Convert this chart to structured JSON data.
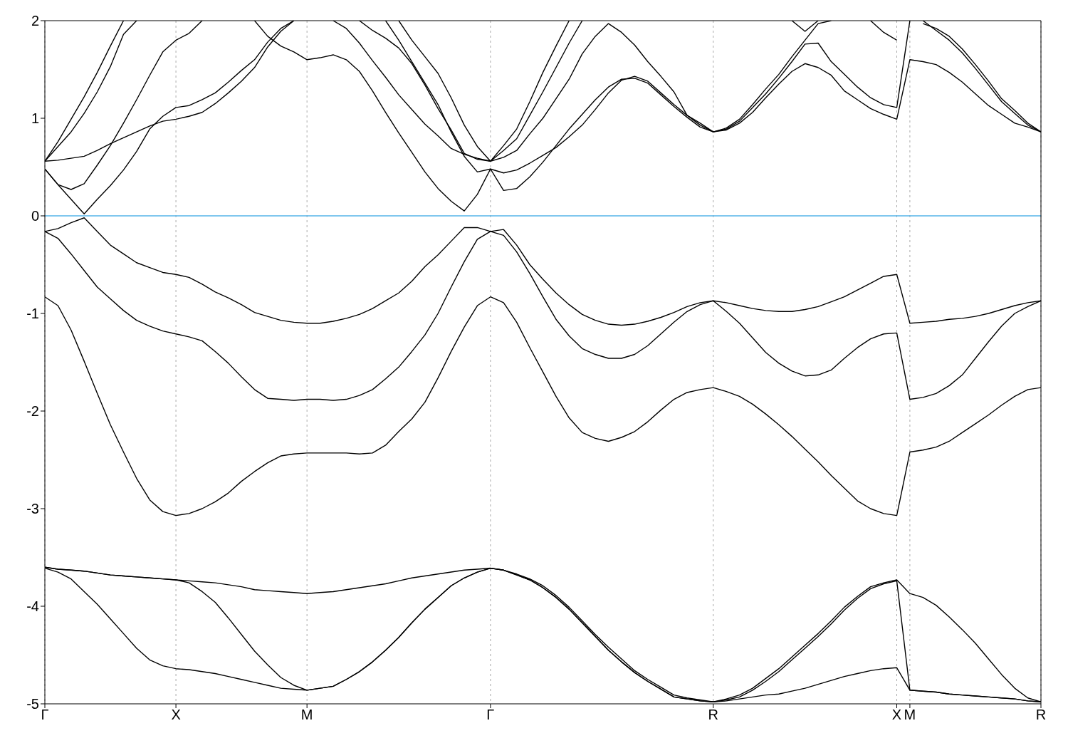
{
  "chart_data": {
    "type": "line",
    "ylim": [
      -5,
      2
    ],
    "yticks": [
      -5,
      -4,
      -3,
      -2,
      -1,
      0,
      1,
      2
    ],
    "categories": [
      "Γ",
      null,
      null,
      null,
      null,
      null,
      null,
      null,
      null,
      null,
      "X",
      null,
      null,
      null,
      null,
      null,
      null,
      null,
      null,
      null,
      "M",
      null,
      null,
      null,
      null,
      null,
      null,
      null,
      null,
      null,
      null,
      null,
      null,
      null,
      "Γ",
      null,
      null,
      null,
      null,
      null,
      null,
      null,
      null,
      null,
      null,
      null,
      null,
      null,
      null,
      null,
      null,
      "R",
      null,
      null,
      null,
      null,
      null,
      null,
      null,
      null,
      null,
      null,
      null,
      null,
      null,
      "X",
      "M",
      null,
      null,
      null,
      null,
      null,
      null,
      null,
      null,
      null,
      "R"
    ],
    "grid": "x",
    "ref_lines": [
      {
        "axis": "y",
        "value": 0,
        "color": "#56b4e9"
      }
    ],
    "series": [
      {
        "color": "#000000",
        "values": [
          -3.6,
          -3.62,
          -3.63,
          -3.64,
          -3.66,
          -3.68,
          -3.69,
          -3.7,
          -3.71,
          -3.72,
          -3.73,
          -3.74,
          -3.75,
          -3.76,
          -3.78,
          -3.8,
          -3.83,
          -3.84,
          -3.85,
          -3.86,
          -3.87,
          -3.86,
          -3.85,
          -3.83,
          -3.81,
          -3.79,
          -3.77,
          -3.74,
          -3.71,
          -3.69,
          -3.67,
          -3.65,
          -3.63,
          -3.62,
          -3.61,
          -3.63,
          -3.67,
          -3.72,
          -3.79,
          -3.89,
          -4.01,
          -4.15,
          -4.29,
          -4.42,
          -4.54,
          -4.66,
          -4.75,
          -4.83,
          -4.91,
          -4.94,
          -4.96,
          -4.98,
          -4.95,
          -4.91,
          -4.84,
          -4.74,
          -4.64,
          -4.52,
          -4.4,
          -4.28,
          -4.15,
          -4.01,
          -3.9,
          -3.8,
          -3.76,
          -3.73,
          -3.87,
          -3.91,
          -3.99,
          -4.11,
          -4.24,
          -4.38,
          -4.54,
          -4.7,
          -4.84,
          -4.94,
          -4.98
        ]
      },
      {
        "color": "#000000",
        "values": [
          -3.6,
          -3.62,
          -3.63,
          -3.64,
          -3.66,
          -3.68,
          -3.69,
          -3.7,
          -3.71,
          -3.72,
          -3.73,
          -3.76,
          -3.85,
          -3.96,
          -4.12,
          -4.29,
          -4.46,
          -4.6,
          -4.73,
          -4.81,
          -4.86,
          -4.84,
          -4.82,
          -4.75,
          -4.67,
          -4.57,
          -4.45,
          -4.32,
          -4.17,
          -4.03,
          -3.91,
          -3.79,
          -3.71,
          -3.65,
          -3.61,
          -3.63,
          -3.68,
          -3.73,
          -3.81,
          -3.91,
          -4.03,
          -4.17,
          -4.31,
          -4.45,
          -4.57,
          -4.68,
          -4.77,
          -4.85,
          -4.93,
          -4.95,
          -4.97,
          -4.98,
          -4.96,
          -4.93,
          -4.86,
          -4.77,
          -4.67,
          -4.55,
          -4.43,
          -4.31,
          -4.18,
          -4.04,
          -3.92,
          -3.82,
          -3.77,
          -3.74,
          -4.86,
          -4.87,
          -4.88,
          -4.9,
          -4.91,
          -4.92,
          -4.93,
          -4.94,
          -4.95,
          -4.97,
          -4.98
        ]
      },
      {
        "color": "#000000",
        "values": [
          -3.61,
          -3.65,
          -3.72,
          -3.85,
          -3.98,
          -4.13,
          -4.28,
          -4.43,
          -4.55,
          -4.61,
          -4.64,
          -4.65,
          -4.67,
          -4.69,
          -4.72,
          -4.75,
          -4.78,
          -4.81,
          -4.84,
          -4.85,
          -4.86,
          -4.84,
          -4.82,
          -4.75,
          -4.67,
          -4.57,
          -4.45,
          -4.32,
          -4.17,
          -4.03,
          -3.91,
          -3.79,
          -3.71,
          -3.65,
          -3.61,
          -3.63,
          -3.68,
          -3.73,
          -3.81,
          -3.91,
          -4.03,
          -4.17,
          -4.31,
          -4.45,
          -4.57,
          -4.68,
          -4.77,
          -4.85,
          -4.93,
          -4.95,
          -4.97,
          -4.98,
          -4.97,
          -4.95,
          -4.93,
          -4.91,
          -4.9,
          -4.87,
          -4.84,
          -4.8,
          -4.76,
          -4.72,
          -4.69,
          -4.66,
          -4.64,
          -4.63,
          -4.86,
          -4.87,
          -4.88,
          -4.9,
          -4.91,
          -4.92,
          -4.93,
          -4.94,
          -4.95,
          -4.97,
          -4.98
        ]
      },
      {
        "color": "#000000",
        "values": [
          -0.83,
          -0.92,
          -1.17,
          -1.49,
          -1.82,
          -2.14,
          -2.42,
          -2.69,
          -2.91,
          -3.03,
          -3.07,
          -3.05,
          -3,
          -2.93,
          -2.84,
          -2.72,
          -2.62,
          -2.53,
          -2.46,
          -2.44,
          -2.43,
          -2.43,
          -2.43,
          -2.43,
          -2.44,
          -2.43,
          -2.35,
          -2.21,
          -2.08,
          -1.91,
          -1.66,
          -1.39,
          -1.14,
          -0.92,
          -0.83,
          -0.89,
          -1.09,
          -1.35,
          -1.6,
          -1.85,
          -2.07,
          -2.22,
          -2.28,
          -2.31,
          -2.27,
          -2.21,
          -2.11,
          -1.99,
          -1.88,
          -1.81,
          -1.78,
          -1.76,
          -1.8,
          -1.85,
          -1.93,
          -2.03,
          -2.14,
          -2.26,
          -2.39,
          -2.52,
          -2.66,
          -2.79,
          -2.92,
          -3,
          -3.05,
          -3.07,
          -2.42,
          -2.4,
          -2.37,
          -2.31,
          -2.22,
          -2.13,
          -2.04,
          -1.94,
          -1.85,
          -1.78,
          -1.76
        ]
      },
      {
        "color": "#000000",
        "values": [
          -0.16,
          -0.23,
          -0.39,
          -0.56,
          -0.73,
          -0.85,
          -0.97,
          -1.07,
          -1.13,
          -1.18,
          -1.21,
          -1.24,
          -1.28,
          -1.39,
          -1.51,
          -1.65,
          -1.78,
          -1.87,
          -1.88,
          -1.89,
          -1.88,
          -1.88,
          -1.89,
          -1.88,
          -1.84,
          -1.78,
          -1.67,
          -1.55,
          -1.39,
          -1.22,
          -1,
          -0.73,
          -0.47,
          -0.24,
          -0.16,
          -0.2,
          -0.37,
          -0.59,
          -0.83,
          -1.06,
          -1.23,
          -1.36,
          -1.42,
          -1.46,
          -1.46,
          -1.42,
          -1.33,
          -1.21,
          -1.09,
          -0.98,
          -0.91,
          -0.87,
          -0.98,
          -1.1,
          -1.25,
          -1.4,
          -1.51,
          -1.59,
          -1.64,
          -1.63,
          -1.58,
          -1.46,
          -1.35,
          -1.26,
          -1.21,
          -1.2,
          -1.88,
          -1.86,
          -1.82,
          -1.74,
          -1.63,
          -1.46,
          -1.29,
          -1.13,
          -1,
          -0.93,
          -0.87
        ]
      },
      {
        "color": "#000000",
        "values": [
          -0.16,
          -0.13,
          -0.07,
          -0.02,
          -0.16,
          -0.3,
          -0.39,
          -0.48,
          -0.53,
          -0.58,
          -0.6,
          -0.63,
          -0.7,
          -0.78,
          -0.84,
          -0.91,
          -0.99,
          -1.03,
          -1.07,
          -1.09,
          -1.1,
          -1.1,
          -1.08,
          -1.05,
          -1.01,
          -0.95,
          -0.87,
          -0.79,
          -0.67,
          -0.52,
          -0.4,
          -0.26,
          -0.12,
          -0.12,
          -0.16,
          -0.14,
          -0.3,
          -0.5,
          -0.65,
          -0.79,
          -0.91,
          -1.01,
          -1.07,
          -1.11,
          -1.12,
          -1.11,
          -1.08,
          -1.04,
          -0.99,
          -0.93,
          -0.89,
          -0.87,
          -0.89,
          -0.92,
          -0.95,
          -0.97,
          -0.98,
          -0.98,
          -0.96,
          -0.93,
          -0.88,
          -0.83,
          -0.76,
          -0.69,
          -0.62,
          -0.6,
          -1.1,
          -1.09,
          -1.08,
          -1.06,
          -1.05,
          -1.03,
          -1,
          -0.96,
          -0.92,
          -0.89,
          -0.87
        ]
      },
      {
        "color": "#000000",
        "values": [
          0.56,
          0.57,
          0.59,
          0.61,
          0.67,
          0.74,
          0.8,
          0.86,
          0.92,
          0.97,
          0.99,
          1.02,
          1.06,
          1.15,
          1.26,
          1.38,
          1.52,
          1.73,
          1.89,
          2,
          null,
          null,
          null,
          null,
          null,
          null,
          null,
          null,
          null,
          null,
          null,
          null,
          null,
          null,
          null,
          null,
          null,
          null,
          null,
          null,
          null,
          null,
          null,
          null,
          null,
          null,
          null,
          null,
          null,
          null,
          null,
          null,
          null,
          null,
          null,
          null,
          null,
          null,
          null,
          null,
          null,
          null,
          null,
          null,
          null,
          null,
          null,
          null,
          null,
          null,
          null,
          null,
          null,
          null,
          null,
          null,
          null
        ]
      },
      {
        "color": "#000000",
        "values": [
          0.48,
          0.32,
          0.17,
          0.02,
          0.17,
          0.31,
          0.47,
          0.66,
          0.89,
          1.02,
          1.11,
          1.13,
          1.19,
          1.26,
          1.37,
          1.49,
          1.6,
          1.78,
          1.92,
          2,
          null,
          null,
          null,
          null,
          null,
          null,
          null,
          null,
          null,
          null,
          null,
          null,
          null,
          null,
          null,
          null,
          null,
          null,
          null,
          null,
          null,
          null,
          null,
          null,
          null,
          null,
          null,
          null,
          null,
          null,
          null,
          null,
          null,
          null,
          null,
          null,
          null,
          null,
          null,
          null,
          null,
          null,
          null,
          null,
          null,
          null,
          null,
          null,
          null,
          null,
          null,
          null,
          null,
          null,
          null,
          null,
          null
        ]
      },
      {
        "color": "#000000",
        "values": [
          0.48,
          0.32,
          0.27,
          0.33,
          0.52,
          0.72,
          0.95,
          1.19,
          1.44,
          1.68,
          1.8,
          1.87,
          2,
          null,
          null,
          null,
          null,
          null,
          null,
          null,
          null,
          null,
          null,
          null,
          null,
          null,
          null,
          null,
          null,
          null,
          null,
          null,
          null,
          null,
          null,
          null,
          null,
          null,
          null,
          null,
          null,
          null,
          null,
          null,
          null,
          null,
          null,
          null,
          null,
          null,
          null,
          null,
          null,
          null,
          null,
          null,
          null,
          null,
          null,
          null,
          null,
          null,
          null,
          null,
          null,
          null,
          null,
          null,
          null,
          null,
          null,
          null,
          null,
          null,
          null,
          null,
          null
        ]
      },
      {
        "color": "#000000",
        "values": [
          0.56,
          0.76,
          0.99,
          1.22,
          1.47,
          1.74,
          2,
          null,
          null,
          null,
          null,
          null,
          null,
          null,
          null,
          null,
          null,
          null,
          null,
          null,
          null,
          null,
          null,
          null,
          null,
          null,
          null,
          null,
          null,
          null,
          null,
          null,
          null,
          null,
          null,
          null,
          null,
          null,
          null,
          null,
          null,
          null,
          null,
          null,
          null,
          null,
          null,
          null,
          null,
          null,
          null,
          null,
          null,
          null,
          null,
          null,
          null,
          null,
          null,
          null,
          null,
          null,
          null,
          null,
          null,
          null,
          null,
          null,
          null,
          null,
          null,
          null,
          null,
          null,
          null,
          null,
          null
        ]
      },
      {
        "color": "#000000",
        "values": [
          0.56,
          0.71,
          0.86,
          1.05,
          1.27,
          1.53,
          1.86,
          2,
          null,
          null,
          null,
          null,
          null,
          null,
          null,
          null,
          null,
          null,
          null,
          null,
          null,
          null,
          null,
          null,
          null,
          null,
          null,
          null,
          null,
          null,
          null,
          null,
          null,
          null,
          null,
          null,
          null,
          null,
          null,
          null,
          null,
          null,
          null,
          null,
          null,
          null,
          null,
          null,
          null,
          null,
          null,
          null,
          null,
          null,
          null,
          null,
          null,
          null,
          null,
          null,
          null,
          null,
          null,
          null,
          null,
          null,
          null,
          null,
          null,
          null,
          null,
          null,
          null,
          null,
          null,
          null,
          null
        ]
      },
      {
        "color": "#000000",
        "values": [
          null,
          null,
          null,
          null,
          null,
          null,
          null,
          null,
          null,
          null,
          null,
          null,
          null,
          null,
          null,
          null,
          2,
          1.84,
          1.74,
          1.68,
          1.6,
          1.62,
          1.65,
          1.6,
          1.48,
          1.28,
          1.06,
          0.85,
          0.65,
          0.45,
          0.28,
          0.15,
          0.05,
          0.22,
          0.48,
          0.26,
          0.28,
          0.4,
          0.55,
          0.72,
          0.89,
          1.04,
          1.19,
          1.32,
          1.4,
          1.41,
          1.36,
          1.24,
          1.12,
          1.01,
          0.91,
          0.86,
          0.9,
          0.99,
          1.14,
          1.3,
          1.45,
          1.63,
          1.8,
          1.97,
          2,
          null,
          null,
          null,
          null,
          null,
          null,
          null,
          null,
          null,
          null,
          null,
          null,
          null,
          null,
          null,
          null
        ]
      },
      {
        "color": "#000000",
        "values": [
          null,
          null,
          null,
          null,
          null,
          null,
          null,
          null,
          null,
          null,
          null,
          null,
          null,
          null,
          null,
          null,
          null,
          null,
          null,
          null,
          null,
          null,
          null,
          null,
          null,
          null,
          2,
          1.8,
          1.58,
          1.36,
          1.14,
          0.86,
          0.61,
          0.45,
          0.48,
          0.44,
          0.47,
          0.54,
          0.62,
          0.7,
          0.81,
          0.93,
          1.09,
          1.26,
          1.39,
          1.43,
          1.38,
          1.26,
          1.14,
          1.03,
          0.93,
          0.86,
          0.89,
          0.97,
          1.11,
          1.25,
          1.41,
          1.58,
          1.76,
          1.77,
          1.58,
          1.45,
          1.32,
          1.21,
          1.14,
          1.11,
          2,
          null,
          null,
          null,
          null,
          null,
          null,
          null,
          null,
          null,
          null
        ]
      },
      {
        "color": "#000000",
        "values": [
          null,
          null,
          null,
          null,
          null,
          null,
          null,
          null,
          null,
          null,
          null,
          null,
          null,
          null,
          null,
          null,
          null,
          null,
          null,
          null,
          null,
          null,
          2,
          1.92,
          1.77,
          1.59,
          1.42,
          1.24,
          1.09,
          0.94,
          0.82,
          0.69,
          0.63,
          0.59,
          0.56,
          0.6,
          0.67,
          0.84,
          1,
          1.2,
          1.4,
          1.66,
          1.84,
          1.97,
          1.88,
          1.75,
          1.58,
          1.43,
          1.27,
          1.03,
          0.95,
          0.86,
          0.88,
          0.95,
          1.06,
          1.21,
          1.35,
          1.48,
          1.56,
          1.52,
          1.44,
          1.28,
          1.19,
          1.1,
          1.04,
          0.99,
          1.6,
          1.58,
          1.55,
          1.47,
          1.37,
          1.25,
          1.13,
          1.04,
          0.95,
          0.91,
          0.86
        ]
      },
      {
        "color": "#000000",
        "values": [
          null,
          null,
          null,
          null,
          null,
          null,
          null,
          null,
          null,
          null,
          null,
          null,
          null,
          null,
          null,
          null,
          null,
          null,
          null,
          null,
          null,
          null,
          null,
          null,
          2,
          1.9,
          1.82,
          1.72,
          1.56,
          1.34,
          1.1,
          0.88,
          0.64,
          0.58,
          0.56,
          0.72,
          0.89,
          1.17,
          1.47,
          1.74,
          2,
          null,
          null,
          null,
          null,
          null,
          null,
          null,
          null,
          null,
          null,
          null,
          null,
          null,
          null,
          null,
          null,
          null,
          null,
          null,
          null,
          null,
          null,
          null,
          null,
          null,
          null,
          null,
          null,
          null,
          null,
          null,
          null,
          null,
          null,
          null,
          null
        ]
      },
      {
        "color": "#000000",
        "values": [
          null,
          null,
          null,
          null,
          null,
          null,
          null,
          null,
          null,
          null,
          null,
          null,
          null,
          null,
          null,
          null,
          null,
          null,
          null,
          null,
          null,
          null,
          null,
          null,
          null,
          null,
          null,
          2,
          1.8,
          1.63,
          1.46,
          1.21,
          0.93,
          0.71,
          0.56,
          0.67,
          0.79,
          1.03,
          1.27,
          1.52,
          1.77,
          2,
          null,
          null,
          null,
          null,
          null,
          null,
          null,
          null,
          null,
          null,
          null,
          null,
          null,
          null,
          null,
          null,
          null,
          null,
          null,
          null,
          null,
          null,
          null,
          null,
          null,
          null,
          null,
          null,
          null,
          null,
          null,
          null,
          null,
          null,
          null
        ]
      },
      {
        "color": "#000000",
        "values": [
          null,
          null,
          null,
          null,
          null,
          null,
          null,
          null,
          null,
          null,
          null,
          null,
          null,
          null,
          null,
          null,
          null,
          null,
          null,
          null,
          null,
          null,
          null,
          null,
          null,
          null,
          null,
          null,
          null,
          null,
          null,
          null,
          null,
          null,
          null,
          null,
          null,
          null,
          null,
          null,
          null,
          null,
          null,
          null,
          null,
          null,
          null,
          null,
          null,
          null,
          null,
          null,
          null,
          null,
          null,
          null,
          null,
          2,
          1.89,
          2,
          null,
          null,
          null,
          null,
          null,
          null,
          null,
          null,
          null,
          null,
          null,
          null,
          null,
          null,
          null,
          null,
          null
        ]
      },
      {
        "color": "#000000",
        "values": [
          null,
          null,
          null,
          null,
          null,
          null,
          null,
          null,
          null,
          null,
          null,
          null,
          null,
          null,
          null,
          null,
          null,
          null,
          null,
          null,
          null,
          null,
          null,
          null,
          null,
          null,
          null,
          null,
          null,
          null,
          null,
          null,
          null,
          null,
          null,
          null,
          null,
          null,
          null,
          null,
          null,
          null,
          null,
          null,
          null,
          null,
          null,
          null,
          null,
          null,
          null,
          null,
          null,
          null,
          null,
          null,
          null,
          null,
          null,
          null,
          null,
          null,
          null,
          2,
          1.88,
          1.8,
          null,
          null,
          null,
          null,
          null,
          null,
          null,
          null,
          null,
          null,
          null
        ]
      },
      {
        "color": "#000000",
        "values": [
          null,
          null,
          null,
          null,
          null,
          null,
          null,
          null,
          null,
          null,
          null,
          null,
          null,
          null,
          null,
          null,
          null,
          null,
          null,
          null,
          null,
          null,
          null,
          null,
          null,
          null,
          null,
          null,
          null,
          null,
          null,
          null,
          null,
          null,
          null,
          null,
          null,
          null,
          null,
          null,
          null,
          null,
          null,
          null,
          null,
          null,
          null,
          null,
          null,
          null,
          null,
          null,
          null,
          null,
          null,
          null,
          null,
          null,
          null,
          null,
          null,
          null,
          null,
          null,
          null,
          null,
          null,
          2,
          1.9,
          1.8,
          1.67,
          1.51,
          1.34,
          1.17,
          1.05,
          0.93,
          0.86
        ]
      },
      {
        "color": "#000000",
        "values": [
          null,
          null,
          null,
          null,
          null,
          null,
          null,
          null,
          null,
          null,
          null,
          null,
          null,
          null,
          null,
          null,
          null,
          null,
          null,
          null,
          null,
          null,
          null,
          null,
          null,
          null,
          null,
          null,
          null,
          null,
          null,
          null,
          null,
          null,
          null,
          null,
          null,
          null,
          null,
          null,
          null,
          null,
          null,
          null,
          null,
          null,
          null,
          null,
          null,
          null,
          null,
          null,
          null,
          null,
          null,
          null,
          null,
          null,
          null,
          null,
          null,
          null,
          null,
          null,
          null,
          null,
          null,
          1.97,
          1.92,
          1.84,
          1.71,
          1.55,
          1.38,
          1.2,
          1.08,
          0.95,
          0.86
        ]
      }
    ]
  }
}
